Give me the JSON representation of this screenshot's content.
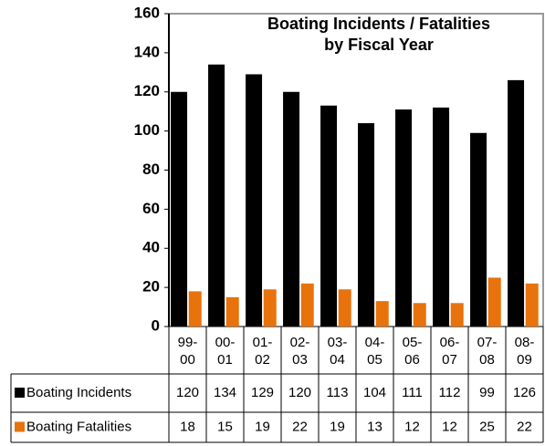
{
  "chart_data": {
    "type": "bar",
    "title": [
      "Boating Incidents / Fatalities",
      "by Fiscal Year"
    ],
    "categories": [
      "99-00",
      "00-01",
      "01-02",
      "02-03",
      "03-04",
      "04-05",
      "05-06",
      "06-07",
      "07-08",
      "08-09"
    ],
    "series": [
      {
        "name": "Boating Incidents",
        "color": "#000000",
        "values": [
          120,
          134,
          129,
          120,
          113,
          104,
          111,
          112,
          99,
          126
        ]
      },
      {
        "name": "Boating Fatalities",
        "color": "#e8720c",
        "values": [
          18,
          15,
          19,
          22,
          19,
          13,
          12,
          12,
          25,
          22
        ]
      }
    ],
    "ylim": [
      0,
      160
    ],
    "yticks": [
      0,
      20,
      40,
      60,
      80,
      100,
      120,
      140,
      160
    ]
  }
}
